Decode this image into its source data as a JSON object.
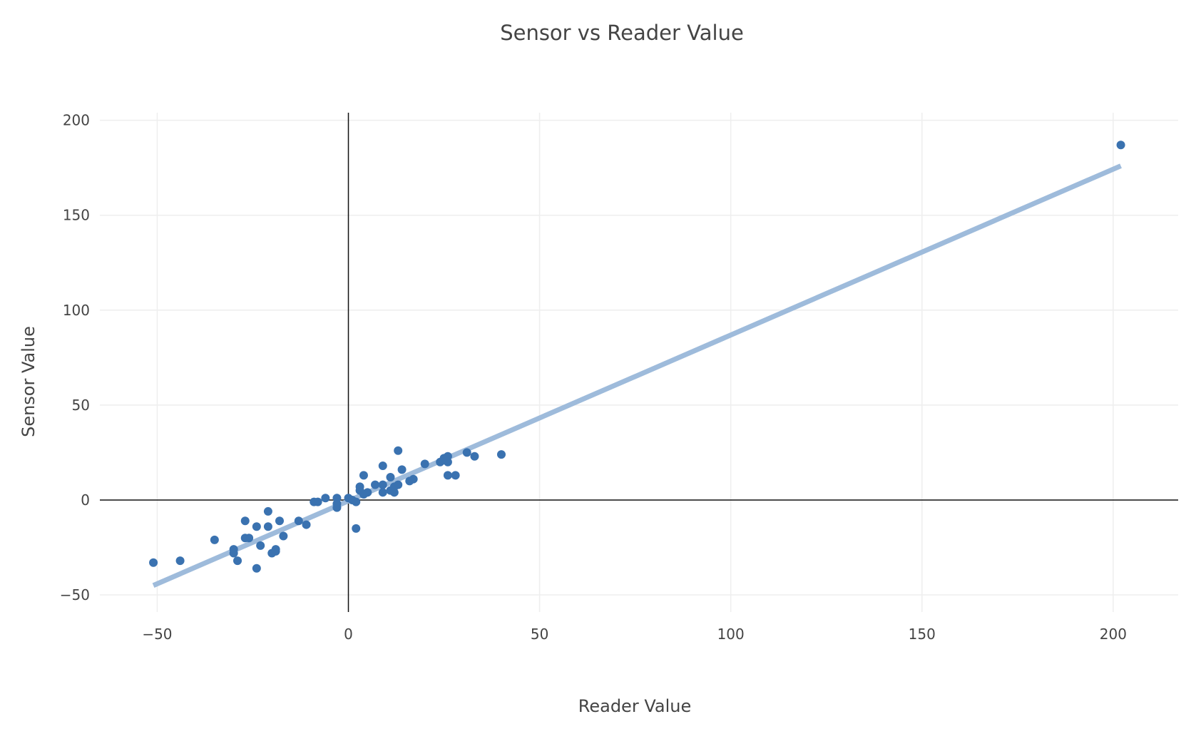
{
  "chart_data": {
    "type": "scatter",
    "title": "Sensor vs Reader Value",
    "xlabel": "Reader Value",
    "ylabel": "Sensor Value",
    "xlim": [
      -65,
      217
    ],
    "ylim": [
      -59,
      204
    ],
    "x_ticks": [
      -50,
      0,
      50,
      100,
      150,
      200
    ],
    "x_tick_labels": [
      "−50",
      "0",
      "50",
      "100",
      "150",
      "200"
    ],
    "y_ticks": [
      -50,
      0,
      50,
      100,
      150,
      200
    ],
    "y_tick_labels": [
      "−50",
      "0",
      "50",
      "100",
      "150",
      "200"
    ],
    "grid": true,
    "zero_lines": true,
    "colors": {
      "points": "#3a72b0",
      "fit_line": "#9ebbdb",
      "grid": "#eeeeee",
      "zero_line": "#111111"
    },
    "series": [
      {
        "kind": "points",
        "points": [
          [
            -51,
            -33
          ],
          [
            -44,
            -32
          ],
          [
            -35,
            -21
          ],
          [
            -30,
            -26
          ],
          [
            -30,
            -28
          ],
          [
            -29,
            -32
          ],
          [
            -27,
            -11
          ],
          [
            -27,
            -20
          ],
          [
            -26,
            -20
          ],
          [
            -24,
            -14
          ],
          [
            -24,
            -36
          ],
          [
            -23,
            -24
          ],
          [
            -21,
            -6
          ],
          [
            -21,
            -14
          ],
          [
            -20,
            -28
          ],
          [
            -19,
            -26
          ],
          [
            -19,
            -27
          ],
          [
            -18,
            -11
          ],
          [
            -17,
            -19
          ],
          [
            -13,
            -11
          ],
          [
            -11,
            -13
          ],
          [
            -9,
            -1
          ],
          [
            -8,
            -1
          ],
          [
            -6,
            1
          ],
          [
            -3,
            1
          ],
          [
            -3,
            -2
          ],
          [
            -3,
            -4
          ],
          [
            0,
            1
          ],
          [
            1,
            0
          ],
          [
            2,
            -1
          ],
          [
            2,
            -15
          ],
          [
            3,
            7
          ],
          [
            3,
            5
          ],
          [
            4,
            13
          ],
          [
            4,
            3
          ],
          [
            5,
            4
          ],
          [
            7,
            8
          ],
          [
            9,
            18
          ],
          [
            9,
            8
          ],
          [
            9,
            4
          ],
          [
            11,
            12
          ],
          [
            11,
            5
          ],
          [
            12,
            7
          ],
          [
            12,
            4
          ],
          [
            13,
            26
          ],
          [
            13,
            8
          ],
          [
            14,
            16
          ],
          [
            16,
            10
          ],
          [
            17,
            11
          ],
          [
            20,
            19
          ],
          [
            24,
            20
          ],
          [
            25,
            22
          ],
          [
            25,
            21
          ],
          [
            26,
            23
          ],
          [
            26,
            20
          ],
          [
            26,
            13
          ],
          [
            28,
            13
          ],
          [
            31,
            25
          ],
          [
            33,
            23
          ],
          [
            40,
            24
          ],
          [
            202,
            187
          ]
        ]
      },
      {
        "kind": "fit_line",
        "points": [
          [
            -51,
            -45
          ],
          [
            202,
            176
          ]
        ]
      }
    ]
  }
}
